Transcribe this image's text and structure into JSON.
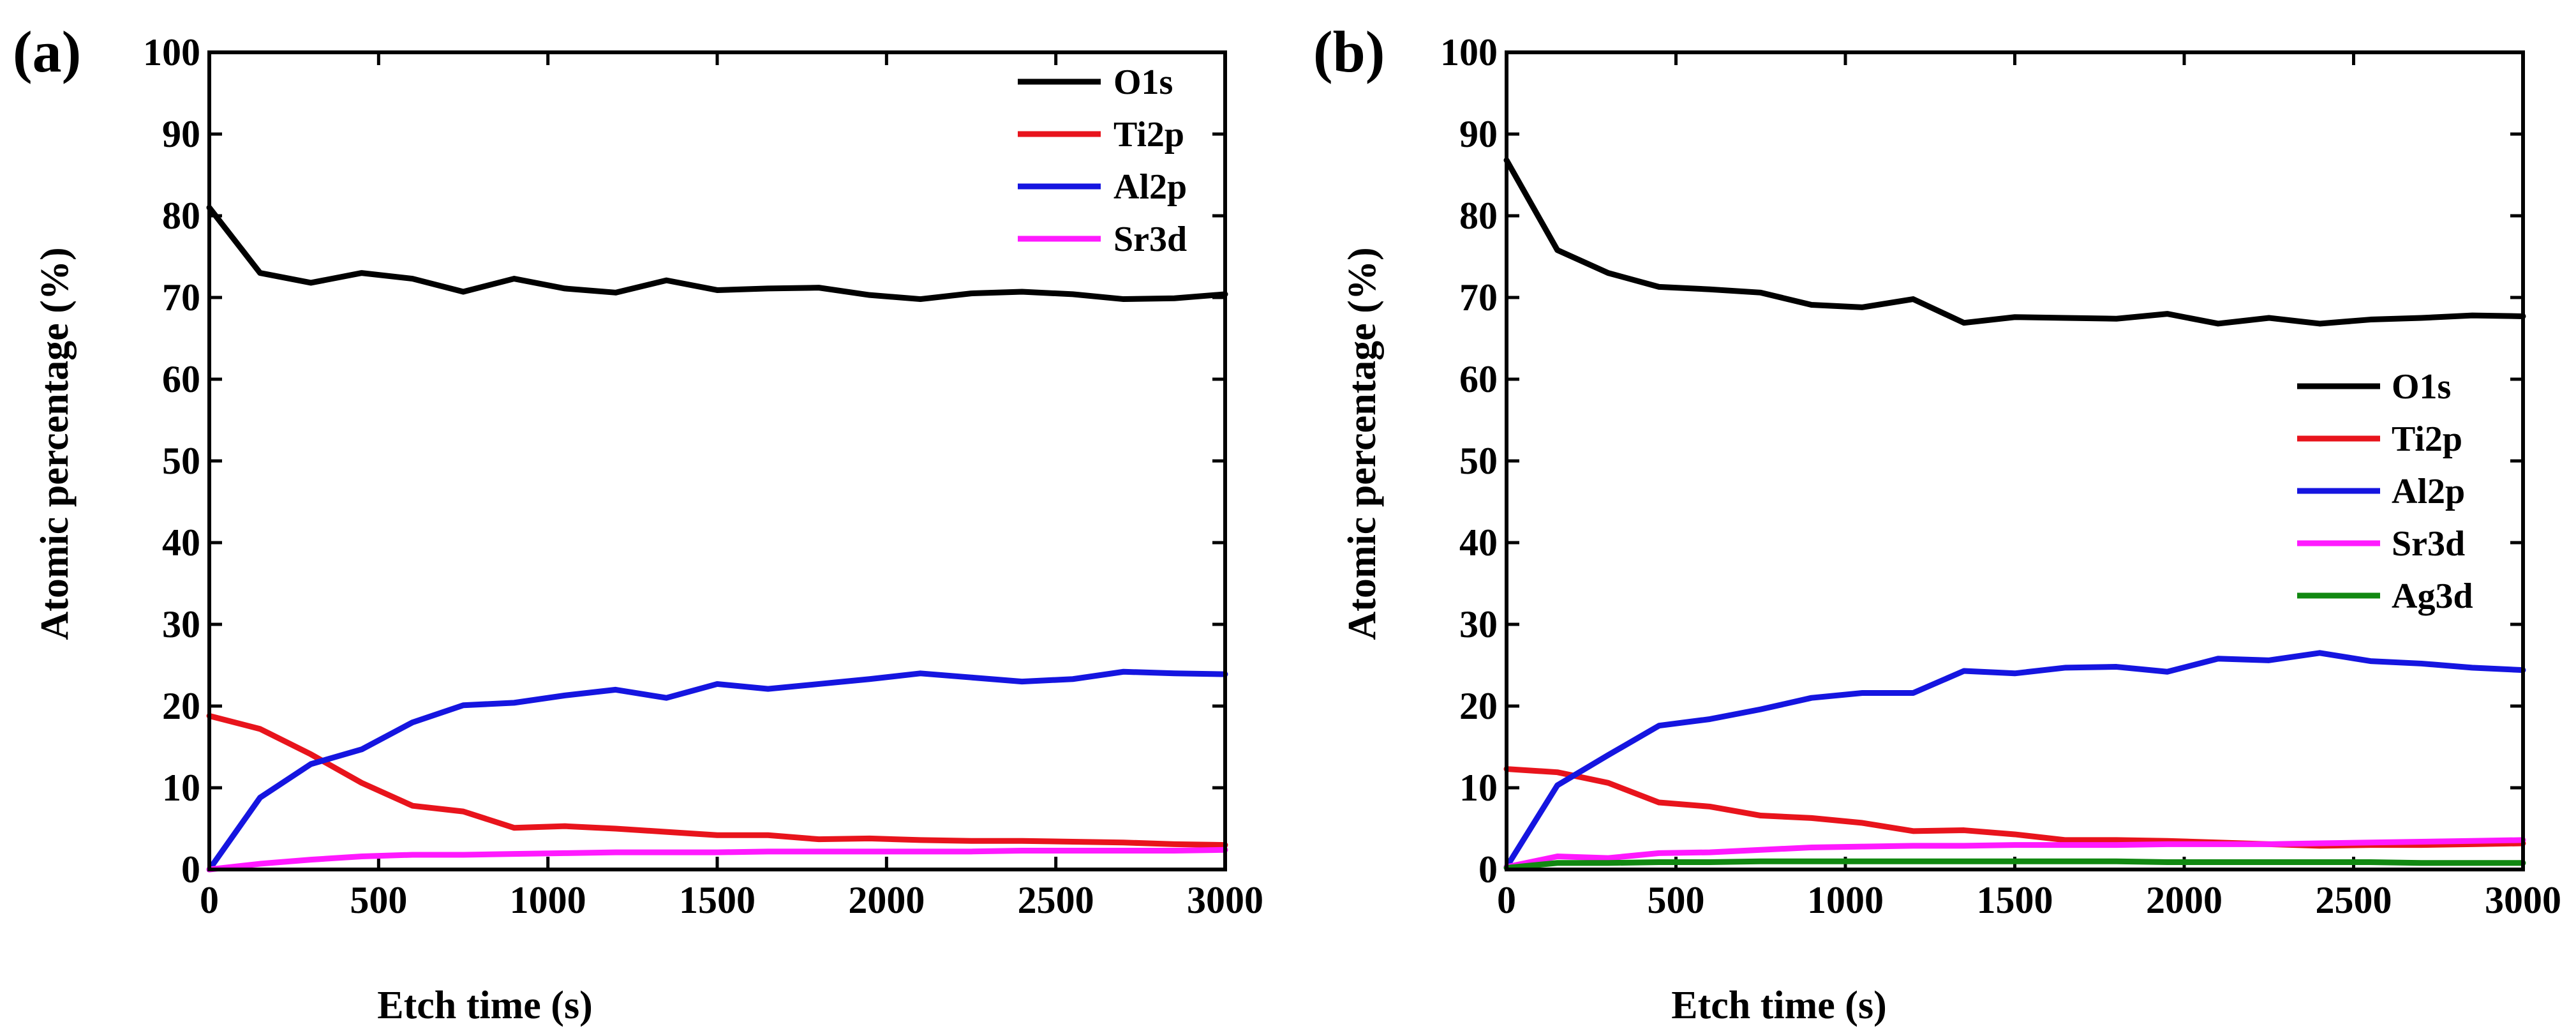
{
  "chart_data": [
    {
      "panel": "(a)",
      "type": "line",
      "xlabel": "Etch time (s)",
      "ylabel": "Atomic percentage (%)",
      "xlim": [
        0,
        3000
      ],
      "ylim": [
        0,
        100
      ],
      "xticks": [
        0,
        500,
        1000,
        1500,
        2000,
        2500,
        3000
      ],
      "yticks": [
        0,
        10,
        20,
        30,
        40,
        50,
        60,
        70,
        80,
        90,
        100
      ],
      "legend_position": "top-right",
      "x": [
        0,
        150,
        300,
        450,
        600,
        750,
        900,
        1050,
        1200,
        1350,
        1500,
        1650,
        1800,
        1950,
        2100,
        2250,
        2400,
        2550,
        2700,
        2850,
        3000
      ],
      "series": [
        {
          "name": "O1s",
          "color": "#000000",
          "values": [
            81,
            73,
            71.8,
            73,
            72.3,
            70.7,
            72.3,
            71.1,
            70.6,
            72.1,
            70.9,
            71.1,
            71.2,
            70.3,
            69.8,
            70.5,
            70.7,
            70.4,
            69.8,
            69.9,
            70.4
          ]
        },
        {
          "name": "Ti2p",
          "color": "#e8141c",
          "values": [
            18.8,
            17.2,
            14.1,
            10.6,
            7.8,
            7.1,
            5.1,
            5.3,
            5.0,
            4.6,
            4.2,
            4.2,
            3.7,
            3.8,
            3.6,
            3.5,
            3.5,
            3.4,
            3.3,
            3.1,
            3.0
          ]
        },
        {
          "name": "Al2p",
          "color": "#1515e0",
          "values": [
            0,
            8.8,
            12.9,
            14.7,
            18.0,
            20.1,
            20.4,
            21.3,
            22.0,
            21.0,
            22.7,
            22.1,
            22.7,
            23.3,
            24.0,
            23.5,
            23.0,
            23.3,
            24.2,
            24.0,
            23.9
          ]
        },
        {
          "name": "Sr3d",
          "color": "#ff1aff",
          "values": [
            0,
            0.7,
            1.2,
            1.6,
            1.8,
            1.8,
            1.9,
            2.0,
            2.1,
            2.1,
            2.1,
            2.2,
            2.2,
            2.2,
            2.2,
            2.2,
            2.3,
            2.3,
            2.3,
            2.3,
            2.4
          ]
        }
      ]
    },
    {
      "panel": "(b)",
      "type": "line",
      "xlabel": "Etch time (s)",
      "ylabel": "Atomic percentage (%)",
      "xlim": [
        0,
        3000
      ],
      "ylim": [
        0,
        100
      ],
      "xticks": [
        0,
        500,
        1000,
        1500,
        2000,
        2500,
        3000
      ],
      "yticks": [
        0,
        10,
        20,
        30,
        40,
        50,
        60,
        70,
        80,
        90,
        100
      ],
      "legend_position": "middle-right",
      "x": [
        0,
        150,
        300,
        450,
        600,
        750,
        900,
        1050,
        1200,
        1350,
        1500,
        1650,
        1800,
        1950,
        2100,
        2250,
        2400,
        2550,
        2700,
        2850,
        3000
      ],
      "series": [
        {
          "name": "O1s",
          "color": "#000000",
          "values": [
            86.8,
            75.8,
            73.0,
            71.3,
            71.0,
            70.6,
            69.1,
            68.8,
            69.8,
            66.9,
            67.6,
            67.5,
            67.4,
            68.0,
            66.8,
            67.5,
            66.8,
            67.3,
            67.5,
            67.8,
            67.7
          ]
        },
        {
          "name": "Ti2p",
          "color": "#e8141c",
          "values": [
            12.3,
            11.9,
            10.6,
            8.2,
            7.7,
            6.6,
            6.3,
            5.7,
            4.7,
            4.8,
            4.3,
            3.6,
            3.6,
            3.5,
            3.3,
            3.1,
            2.9,
            3.0,
            3.0,
            3.1,
            3.2
          ]
        },
        {
          "name": "Al2p",
          "color": "#1515e0",
          "values": [
            0.3,
            10.3,
            14.0,
            17.6,
            18.4,
            19.6,
            21.0,
            21.6,
            21.6,
            24.3,
            24.0,
            24.7,
            24.8,
            24.2,
            25.8,
            25.6,
            26.5,
            25.5,
            25.2,
            24.7,
            24.4
          ]
        },
        {
          "name": "Sr3d",
          "color": "#ff1aff",
          "values": [
            0.3,
            1.6,
            1.4,
            2.0,
            2.1,
            2.4,
            2.7,
            2.8,
            2.9,
            2.9,
            3.0,
            3.0,
            3.0,
            3.1,
            3.1,
            3.1,
            3.2,
            3.3,
            3.4,
            3.5,
            3.6
          ]
        },
        {
          "name": "Ag3d",
          "color": "#118811",
          "values": [
            0.2,
            0.8,
            0.8,
            0.9,
            0.9,
            1.0,
            1.0,
            1.0,
            1.0,
            1.0,
            1.0,
            1.0,
            1.0,
            0.9,
            0.9,
            0.9,
            0.9,
            0.9,
            0.8,
            0.8,
            0.8
          ]
        }
      ]
    }
  ]
}
